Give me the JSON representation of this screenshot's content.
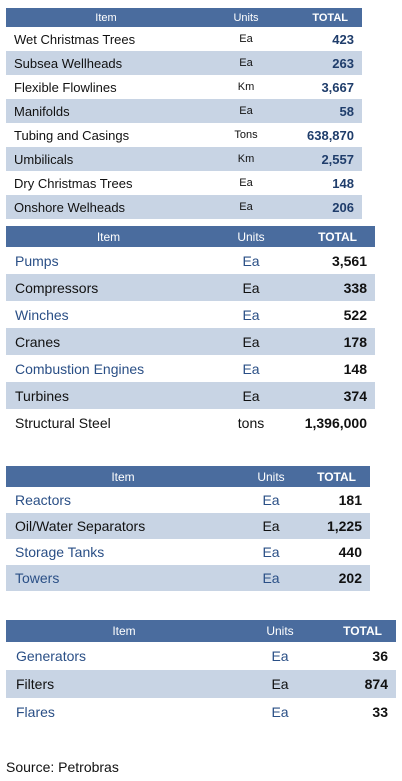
{
  "tables": [
    {
      "headers": {
        "item": "Item",
        "units": "Units",
        "total": "TOTAL"
      },
      "rows": [
        {
          "item": "Wet Christmas Trees",
          "units": "Ea",
          "total": "423"
        },
        {
          "item": "Subsea Wellheads",
          "units": "Ea",
          "total": "263"
        },
        {
          "item": "Flexible Flowlines",
          "units": "Km",
          "total": "3,667"
        },
        {
          "item": "Manifolds",
          "units": "Ea",
          "total": "58"
        },
        {
          "item": "Tubing and Casings",
          "units": "Tons",
          "total": "638,870"
        },
        {
          "item": "Umbilicals",
          "units": "Km",
          "total": "2,557"
        },
        {
          "item": "Dry Christmas Trees",
          "units": "Ea",
          "total": "148"
        },
        {
          "item": "Onshore Welheads",
          "units": "Ea",
          "total": "206"
        }
      ]
    },
    {
      "headers": {
        "item": "Item",
        "units": "Units",
        "total": "TOTAL"
      },
      "rows": [
        {
          "item": "Pumps",
          "units": "Ea",
          "total": "3,561"
        },
        {
          "item": "Compressors",
          "units": "Ea",
          "total": "338"
        },
        {
          "item": "Winches",
          "units": "Ea",
          "total": "522"
        },
        {
          "item": "Cranes",
          "units": "Ea",
          "total": "178"
        },
        {
          "item": "Combustion Engines",
          "units": "Ea",
          "total": "148"
        },
        {
          "item": "Turbines",
          "units": "Ea",
          "total": "374"
        },
        {
          "item": "Structural Steel",
          "units": "tons",
          "total": "1,396,000"
        }
      ]
    },
    {
      "headers": {
        "item": "Item",
        "units": "Units",
        "total": "TOTAL"
      },
      "rows": [
        {
          "item": "Reactors",
          "units": "Ea",
          "total": "181"
        },
        {
          "item": "Oil/Water Separators",
          "units": "Ea",
          "total": "1,225"
        },
        {
          "item": "Storage Tanks",
          "units": "Ea",
          "total": "440"
        },
        {
          "item": "Towers",
          "units": "Ea",
          "total": "202"
        }
      ]
    },
    {
      "headers": {
        "item": "Item",
        "units": "Units",
        "total": "TOTAL"
      },
      "rows": [
        {
          "item": "Generators",
          "units": "Ea",
          "total": "36"
        },
        {
          "item": "Filters",
          "units": "Ea",
          "total": "874"
        },
        {
          "item": "Flares",
          "units": "Ea",
          "total": "33"
        }
      ]
    }
  ],
  "source": "Source: Petrobras",
  "colors": {
    "header_bg": "#4a6c9e",
    "row_shade": "#c8d4e4",
    "accent_text": "#2a4f86"
  }
}
